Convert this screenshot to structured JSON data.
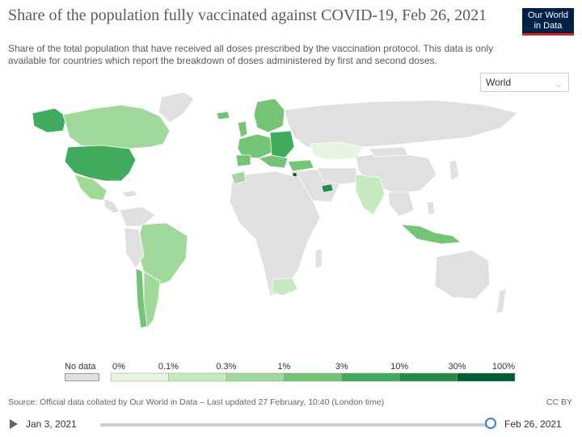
{
  "title": "Share of the population fully vaccinated against COVID-19, Feb 26, 2021",
  "subtitle": "Share of the total population that have received all doses prescribed by the vaccination protocol. This data is only available for countries which report the breakdown of doses administered by first and second doses.",
  "logo": {
    "line1": "Our World",
    "line2": "in Data"
  },
  "region_select": {
    "value": "World"
  },
  "legend": {
    "no_data_label": "No data",
    "bins": [
      "0%",
      "0.1%",
      "0.3%",
      "1%",
      "3%",
      "10%",
      "30%",
      "100%"
    ],
    "colors": [
      "#f7fcf5",
      "#e5f5e0",
      "#c7e9c0",
      "#a1d99b",
      "#74c476",
      "#41ab5d",
      "#238b45",
      "#005a32"
    ],
    "no_data_color": "#e0e0e0"
  },
  "source": "Source: Official data collated by Our World in Data – Last updated 27 February, 10:40 (London time)",
  "license": "CC BY",
  "timeline": {
    "start": "Jan 3, 2021",
    "end": "Feb 26, 2021"
  }
}
